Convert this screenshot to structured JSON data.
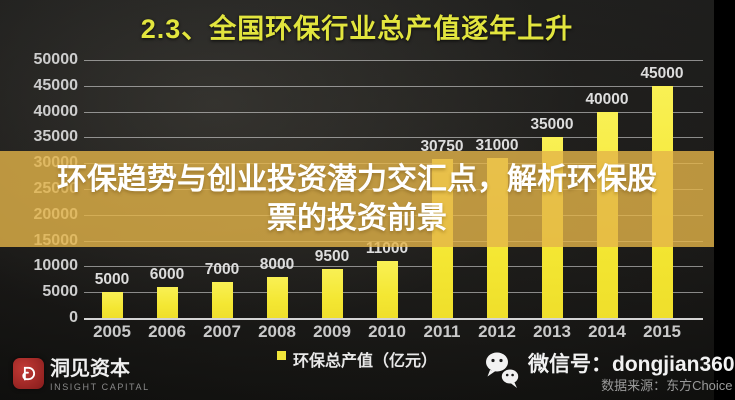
{
  "title": "2.3、全国环保行业总产值逐年上升",
  "overlay": {
    "line1": "环保趋势与创业投资潜力交汇点，解析环保股",
    "line2": "票的投资前景"
  },
  "chart_data": {
    "type": "bar",
    "title": "2.3、全国环保行业总产值逐年上升",
    "categories": [
      "2005",
      "2006",
      "2007",
      "2008",
      "2009",
      "2010",
      "2011",
      "2012",
      "2013",
      "2014",
      "2015"
    ],
    "values": [
      5000,
      6000,
      7000,
      8000,
      9500,
      11000,
      30750,
      31000,
      35000,
      40000,
      45000
    ],
    "series_name": "环保总产值（亿元）",
    "xlabel": "",
    "ylabel": "",
    "ylim": [
      0,
      50000
    ],
    "ytick_step": 5000,
    "grid": true,
    "legend_position": "bottom",
    "bar_color": "#f5e93c",
    "value_labels_shown": true
  },
  "legend": {
    "label": "环保总产值（亿元）",
    "swatch_color": "#f0e53a"
  },
  "footer": {
    "brand_cn": "洞见资本",
    "brand_en": "INSIGHT CAPITAL",
    "wechat_label": "微信号：dongjian360",
    "data_source": "数据来源：东方Choice"
  },
  "icons": {
    "brand_logo": "spiral-d-logo",
    "wechat": "wechat-bubbles-icon",
    "legend_swatch": "yellow-square"
  },
  "colors": {
    "background": "#161514",
    "title_text": "#e2e53e",
    "bar": "#f5e93c",
    "overlay_band": "rgba(228,180,72,0.80)",
    "overlay_text": "#ffffff",
    "axis_text": "#cccccc",
    "logo_red": "#a82a28"
  }
}
